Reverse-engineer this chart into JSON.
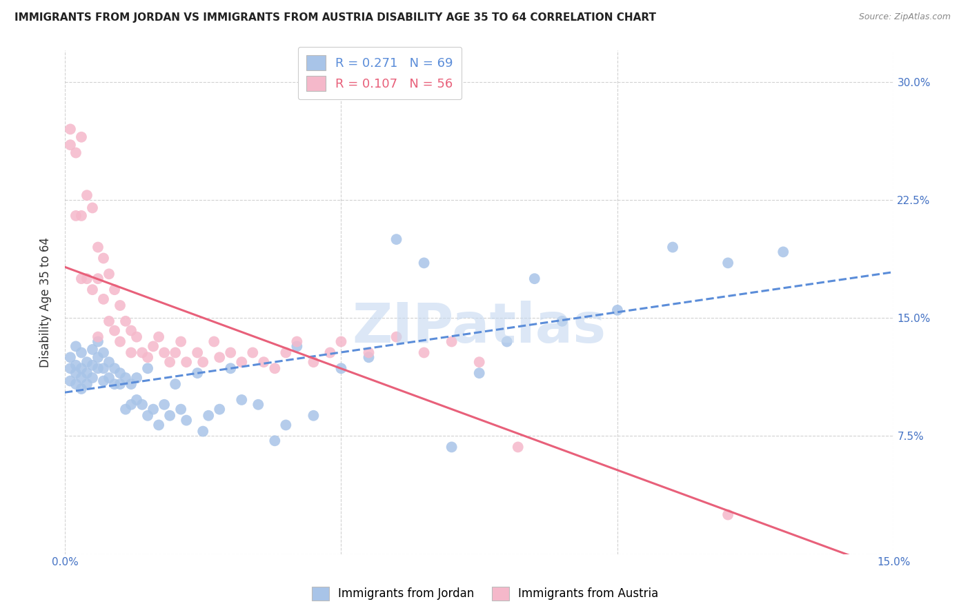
{
  "title": "IMMIGRANTS FROM JORDAN VS IMMIGRANTS FROM AUSTRIA DISABILITY AGE 35 TO 64 CORRELATION CHART",
  "source": "Source: ZipAtlas.com",
  "ylabel": "Disability Age 35 to 64",
  "xlim": [
    0.0,
    0.15
  ],
  "ylim": [
    0.0,
    0.32
  ],
  "yticks": [
    0.0,
    0.075,
    0.15,
    0.225,
    0.3
  ],
  "yticklabels_right": [
    "",
    "7.5%",
    "15.0%",
    "22.5%",
    "30.0%"
  ],
  "xtick_positions": [
    0.0,
    0.05,
    0.1,
    0.15
  ],
  "xticklabels": [
    "0.0%",
    "",
    "",
    "15.0%"
  ],
  "jordan_color": "#a8c4e8",
  "austria_color": "#f5b8ca",
  "jordan_R": 0.271,
  "jordan_N": 69,
  "austria_R": 0.107,
  "austria_N": 56,
  "jordan_line_color": "#5b8dd9",
  "austria_line_color": "#e8607a",
  "watermark": "ZIPatlas",
  "watermark_color": "#c5d8f0",
  "jordan_x": [
    0.001,
    0.001,
    0.001,
    0.002,
    0.002,
    0.002,
    0.002,
    0.003,
    0.003,
    0.003,
    0.003,
    0.004,
    0.004,
    0.004,
    0.005,
    0.005,
    0.005,
    0.006,
    0.006,
    0.006,
    0.007,
    0.007,
    0.007,
    0.008,
    0.008,
    0.009,
    0.009,
    0.01,
    0.01,
    0.011,
    0.011,
    0.012,
    0.012,
    0.013,
    0.013,
    0.014,
    0.015,
    0.015,
    0.016,
    0.017,
    0.018,
    0.019,
    0.02,
    0.021,
    0.022,
    0.024,
    0.025,
    0.026,
    0.028,
    0.03,
    0.032,
    0.035,
    0.038,
    0.04,
    0.042,
    0.045,
    0.05,
    0.055,
    0.06,
    0.065,
    0.07,
    0.075,
    0.08,
    0.085,
    0.09,
    0.1,
    0.11,
    0.12,
    0.13
  ],
  "jordan_y": [
    0.125,
    0.118,
    0.11,
    0.132,
    0.12,
    0.115,
    0.108,
    0.128,
    0.118,
    0.112,
    0.105,
    0.122,
    0.115,
    0.108,
    0.13,
    0.12,
    0.112,
    0.135,
    0.125,
    0.118,
    0.128,
    0.118,
    0.11,
    0.122,
    0.112,
    0.118,
    0.108,
    0.115,
    0.108,
    0.112,
    0.092,
    0.108,
    0.095,
    0.112,
    0.098,
    0.095,
    0.118,
    0.088,
    0.092,
    0.082,
    0.095,
    0.088,
    0.108,
    0.092,
    0.085,
    0.115,
    0.078,
    0.088,
    0.092,
    0.118,
    0.098,
    0.095,
    0.072,
    0.082,
    0.132,
    0.088,
    0.118,
    0.125,
    0.2,
    0.185,
    0.068,
    0.115,
    0.135,
    0.175,
    0.148,
    0.155,
    0.195,
    0.185,
    0.192
  ],
  "austria_x": [
    0.001,
    0.001,
    0.002,
    0.002,
    0.003,
    0.003,
    0.003,
    0.004,
    0.004,
    0.005,
    0.005,
    0.006,
    0.006,
    0.006,
    0.007,
    0.007,
    0.008,
    0.008,
    0.009,
    0.009,
    0.01,
    0.01,
    0.011,
    0.012,
    0.012,
    0.013,
    0.014,
    0.015,
    0.016,
    0.017,
    0.018,
    0.019,
    0.02,
    0.021,
    0.022,
    0.024,
    0.025,
    0.027,
    0.028,
    0.03,
    0.032,
    0.034,
    0.036,
    0.038,
    0.04,
    0.042,
    0.045,
    0.048,
    0.05,
    0.055,
    0.06,
    0.065,
    0.07,
    0.075,
    0.082,
    0.12
  ],
  "austria_y": [
    0.27,
    0.26,
    0.255,
    0.215,
    0.265,
    0.215,
    0.175,
    0.228,
    0.175,
    0.22,
    0.168,
    0.195,
    0.175,
    0.138,
    0.188,
    0.162,
    0.178,
    0.148,
    0.168,
    0.142,
    0.158,
    0.135,
    0.148,
    0.142,
    0.128,
    0.138,
    0.128,
    0.125,
    0.132,
    0.138,
    0.128,
    0.122,
    0.128,
    0.135,
    0.122,
    0.128,
    0.122,
    0.135,
    0.125,
    0.128,
    0.122,
    0.128,
    0.122,
    0.118,
    0.128,
    0.135,
    0.122,
    0.128,
    0.135,
    0.128,
    0.138,
    0.128,
    0.135,
    0.122,
    0.068,
    0.025
  ]
}
